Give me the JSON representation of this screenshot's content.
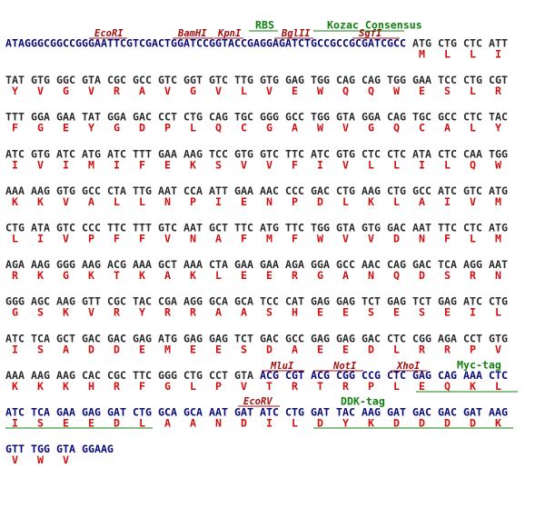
{
  "sequence_rows": [
    {
      "prefix": "ATAGGGCGGCCGGGAATTCGTCGACTGGATCCGGTACCGAGGAGATCTGCCGCCGCGATCGCC",
      "codons": [
        "ATG",
        "CTG",
        "CTC",
        "ATT"
      ],
      "amino_acids": [
        "M",
        "L",
        "L",
        "I"
      ]
    },
    {
      "codons": [
        "TAT",
        "GTG",
        "GGC",
        "GTA",
        "CGC",
        "GCC",
        "GTC",
        "GGT",
        "GTC",
        "TTG",
        "GTG",
        "GAG",
        "TGG",
        "CAG",
        "CAG",
        "TGG",
        "GAA",
        "TCC",
        "CTG",
        "CGT"
      ],
      "amino_acids": [
        "Y",
        "V",
        "G",
        "V",
        "R",
        "A",
        "V",
        "G",
        "V",
        "L",
        "V",
        "E",
        "W",
        "Q",
        "Q",
        "W",
        "E",
        "S",
        "L",
        "R"
      ]
    },
    {
      "codons": [
        "TTT",
        "GGA",
        "GAA",
        "TAT",
        "GGA",
        "GAC",
        "CCT",
        "CTG",
        "CAG",
        "TGC",
        "GGG",
        "GCC",
        "TGG",
        "GTA",
        "GGA",
        "CAG",
        "TGC",
        "GCC",
        "CTC",
        "TAC"
      ],
      "amino_acids": [
        "F",
        "G",
        "E",
        "Y",
        "G",
        "D",
        "P",
        "L",
        "Q",
        "C",
        "G",
        "A",
        "W",
        "V",
        "G",
        "Q",
        "C",
        "A",
        "L",
        "Y"
      ]
    },
    {
      "codons": [
        "ATC",
        "GTG",
        "ATC",
        "ATG",
        "ATC",
        "TTT",
        "GAA",
        "AAG",
        "TCC",
        "GTG",
        "GTC",
        "TTC",
        "ATC",
        "GTG",
        "CTC",
        "CTC",
        "ATA",
        "CTC",
        "CAA",
        "TGG"
      ],
      "amino_acids": [
        "I",
        "V",
        "I",
        "M",
        "I",
        "F",
        "E",
        "K",
        "S",
        "V",
        "V",
        "F",
        "I",
        "V",
        "L",
        "L",
        "I",
        "L",
        "Q",
        "W"
      ]
    },
    {
      "codons": [
        "AAA",
        "AAG",
        "GTG",
        "GCC",
        "CTA",
        "TTG",
        "AAT",
        "CCA",
        "ATT",
        "GAA",
        "AAC",
        "CCC",
        "GAC",
        "CTG",
        "AAG",
        "CTG",
        "GCC",
        "ATC",
        "GTC",
        "ATG"
      ],
      "amino_acids": [
        "K",
        "K",
        "V",
        "A",
        "L",
        "L",
        "N",
        "P",
        "I",
        "E",
        "N",
        "P",
        "D",
        "L",
        "K",
        "L",
        "A",
        "I",
        "V",
        "M"
      ]
    },
    {
      "codons": [
        "CTG",
        "ATA",
        "GTC",
        "CCC",
        "TTC",
        "TTT",
        "GTC",
        "AAT",
        "GCT",
        "TTC",
        "ATG",
        "TTC",
        "TGG",
        "GTA",
        "GTG",
        "GAC",
        "AAT",
        "TTC",
        "CTC",
        "ATG"
      ],
      "amino_acids": [
        "L",
        "I",
        "V",
        "P",
        "F",
        "F",
        "V",
        "N",
        "A",
        "F",
        "M",
        "F",
        "W",
        "V",
        "V",
        "D",
        "N",
        "F",
        "L",
        "M"
      ]
    },
    {
      "codons": [
        "AGA",
        "AAG",
        "GGG",
        "AAG",
        "ACG",
        "AAA",
        "GCT",
        "AAA",
        "CTA",
        "GAA",
        "GAA",
        "AGA",
        "GGA",
        "GCC",
        "AAC",
        "CAG",
        "GAC",
        "TCA",
        "AGG",
        "AAT"
      ],
      "amino_acids": [
        "R",
        "K",
        "G",
        "K",
        "T",
        "K",
        "A",
        "K",
        "L",
        "E",
        "E",
        "R",
        "G",
        "A",
        "N",
        "Q",
        "D",
        "S",
        "R",
        "N"
      ]
    },
    {
      "codons": [
        "GGG",
        "AGC",
        "AAG",
        "GTT",
        "CGC",
        "TAC",
        "CGA",
        "AGG",
        "GCA",
        "GCA",
        "TCC",
        "CAT",
        "GAG",
        "GAG",
        "TCT",
        "GAG",
        "TCT",
        "GAG",
        "ATC",
        "CTG"
      ],
      "amino_acids": [
        "G",
        "S",
        "K",
        "V",
        "R",
        "Y",
        "R",
        "R",
        "A",
        "A",
        "S",
        "H",
        "E",
        "E",
        "S",
        "E",
        "S",
        "E",
        "I",
        "L"
      ]
    },
    {
      "codons": [
        "ATC",
        "TCA",
        "GCT",
        "GAC",
        "GAC",
        "GAG",
        "ATG",
        "GAG",
        "GAG",
        "TCT",
        "GAC",
        "GCC",
        "GAG",
        "GAG",
        "GAC",
        "CTC",
        "CGG",
        "AGA",
        "CCT",
        "GTG"
      ],
      "amino_acids": [
        "I",
        "S",
        "A",
        "D",
        "D",
        "E",
        "M",
        "E",
        "E",
        "S",
        "D",
        "A",
        "E",
        "E",
        "D",
        "L",
        "R",
        "R",
        "P",
        "V"
      ]
    },
    {
      "codons": [
        "AAA",
        "AAG",
        "AAG",
        "CAC",
        "CGC",
        "TTC",
        "GGG",
        "CTG",
        "CCT",
        "GTA",
        "ACG",
        "CGT",
        "ACG",
        "CGG",
        "CCG",
        "CTC",
        "GAG",
        "CAG",
        "AAA",
        "CTC"
      ],
      "amino_acids": [
        "K",
        "K",
        "K",
        "H",
        "R",
        "F",
        "G",
        "L",
        "P",
        "V",
        "T",
        "R",
        "T",
        "R",
        "P",
        "L",
        "E",
        "Q",
        "K",
        "L"
      ]
    },
    {
      "codons": [
        "ATC",
        "TCA",
        "GAA",
        "GAG",
        "GAT",
        "CTG",
        "GCA",
        "GCA",
        "AAT",
        "GAT",
        "ATC",
        "CTG",
        "GAT",
        "TAC",
        "AAG",
        "GAT",
        "GAC",
        "GAC",
        "GAT",
        "AAG"
      ],
      "amino_acids": [
        "I",
        "S",
        "E",
        "E",
        "D",
        "L",
        "A",
        "A",
        "N",
        "D",
        "I",
        "L",
        "D",
        "Y",
        "K",
        "D",
        "D",
        "D",
        "D",
        "K"
      ]
    },
    {
      "codons": [
        "GTT",
        "TGG",
        "GTA",
        "GGAAG"
      ],
      "amino_acids": [
        "V",
        "W",
        "V"
      ]
    }
  ],
  "annotations": [
    "EcoRI",
    "BamHI",
    "KpnI",
    "BglII",
    "SgfI",
    "RBS",
    "Kozac Consensus",
    "MluI",
    "NotI",
    "XhoI",
    "Myc-tag",
    "EcoRV",
    "DDK-tag"
  ]
}
